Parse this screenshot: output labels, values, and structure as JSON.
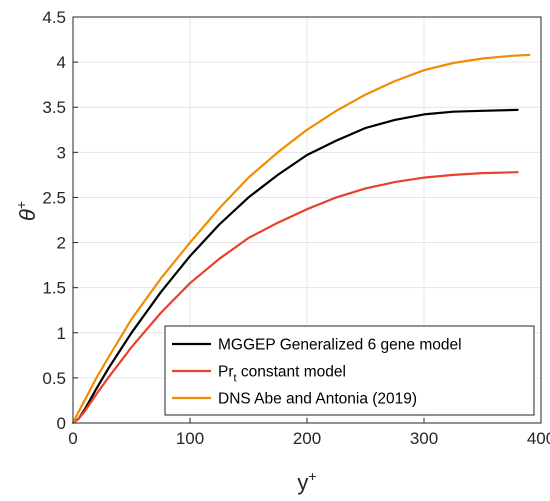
{
  "chart_data": {
    "type": "line",
    "title": "",
    "xlabel": {
      "base": "y",
      "sup": "+"
    },
    "ylabel": {
      "base": "θ",
      "sup": "+"
    },
    "xlim": [
      0,
      400
    ],
    "ylim": [
      0,
      4.5
    ],
    "xticks": [
      "0",
      "100",
      "200",
      "300",
      "400"
    ],
    "yticks": [
      "0",
      "0.5",
      "1",
      "1.5",
      "2",
      "2.5",
      "3",
      "3.5",
      "4",
      "4.5"
    ],
    "grid": true,
    "legend_position": "bottom-right",
    "series": [
      {
        "name": "MGGEP Generalized 6 gene model",
        "name_parts": {
          "base": "MGGEP Generalized 6 gene model",
          "sub": "",
          "rest": ""
        },
        "color": "#000000",
        "x": [
          0,
          5,
          10,
          20,
          30,
          50,
          75,
          100,
          125,
          150,
          175,
          200,
          225,
          250,
          275,
          300,
          325,
          350,
          380
        ],
        "y": [
          0,
          0.05,
          0.15,
          0.38,
          0.6,
          1.0,
          1.45,
          1.85,
          2.2,
          2.5,
          2.75,
          2.97,
          3.13,
          3.27,
          3.36,
          3.42,
          3.45,
          3.46,
          3.47
        ]
      },
      {
        "name": "Prt constant model",
        "name_parts": {
          "base": "Pr",
          "sub": "t",
          "rest": " constant model"
        },
        "color": "#e8412a",
        "x": [
          0,
          5,
          10,
          20,
          30,
          50,
          75,
          100,
          125,
          150,
          175,
          200,
          225,
          250,
          275,
          300,
          325,
          350,
          380
        ],
        "y": [
          0,
          0.05,
          0.13,
          0.32,
          0.5,
          0.84,
          1.22,
          1.55,
          1.82,
          2.05,
          2.22,
          2.37,
          2.5,
          2.6,
          2.67,
          2.72,
          2.75,
          2.77,
          2.78
        ]
      },
      {
        "name": "DNS Abe and Antonia (2019)",
        "name_parts": {
          "base": "DNS Abe and Antonia (2019)",
          "sub": "",
          "rest": ""
        },
        "color": "#f08c00",
        "x": [
          0,
          5,
          10,
          20,
          30,
          50,
          75,
          100,
          125,
          150,
          175,
          200,
          225,
          250,
          275,
          300,
          325,
          350,
          375,
          390
        ],
        "y": [
          0,
          0.13,
          0.25,
          0.5,
          0.72,
          1.15,
          1.6,
          2.0,
          2.38,
          2.72,
          3.0,
          3.25,
          3.46,
          3.64,
          3.79,
          3.91,
          3.99,
          4.04,
          4.07,
          4.08
        ]
      }
    ]
  }
}
